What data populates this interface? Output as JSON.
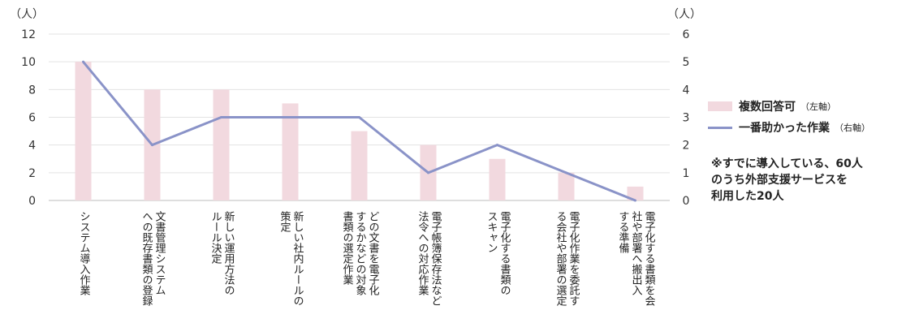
{
  "chart_data": {
    "type": "bar+line",
    "categories": [
      "システム導入作業",
      "文書管理システムへの既存書類の登録",
      "新しい運用方法のルール決定",
      "新しい社内ルールの策定",
      "どの文書を電子化するかなどの対象書類の選定作業",
      "電子帳簿保存法など法令への対応作業",
      "電子化する書類のスキャン",
      "電子化作業を委託する会社や部署の選定",
      "電子化する書類を会社や部署へ搬出入する準備"
    ],
    "category_labels": [
      "システム導入作業",
      "文書管理システム\nへの既存書類の登録",
      "新しい運用方法の\nルール決定",
      "新しい社内ルールの\n策定",
      "どの文書を電子化\nするかなどの対象\n書類の選定作業",
      "電子帳簿保存法など\n法令への対応作業",
      "電子化する書類の\nスキャン",
      "電子化作業を委託す\nる会社や部署の選定",
      "電子化する書類を会\n社や部署へ搬出入\nする準備"
    ],
    "series": [
      {
        "name": "複数回答可",
        "name_note": "（左軸）",
        "type": "bar",
        "axis": "left",
        "color": "#f2d9df",
        "values": [
          10,
          8,
          8,
          7,
          5,
          4,
          3,
          2,
          1
        ]
      },
      {
        "name": "一番助かった作業",
        "name_note": "（右軸）",
        "type": "line",
        "axis": "right",
        "color": "#8a93c8",
        "values": [
          5,
          2,
          3,
          3,
          3,
          1,
          2,
          1,
          0
        ]
      }
    ],
    "y_left": {
      "unit": "（人）",
      "range": [
        0,
        12
      ],
      "ticks": [
        "0",
        "2",
        "4",
        "6",
        "8",
        "10",
        "12"
      ]
    },
    "y_right": {
      "unit": "（人）",
      "range": [
        0,
        6
      ],
      "ticks": [
        "0",
        "1",
        "2",
        "3",
        "4",
        "5",
        "6"
      ]
    },
    "grid": true,
    "legend_position": "right"
  },
  "note": "※すでに導入している、60人\nのうち外部支援サービスを\n利用した20人"
}
